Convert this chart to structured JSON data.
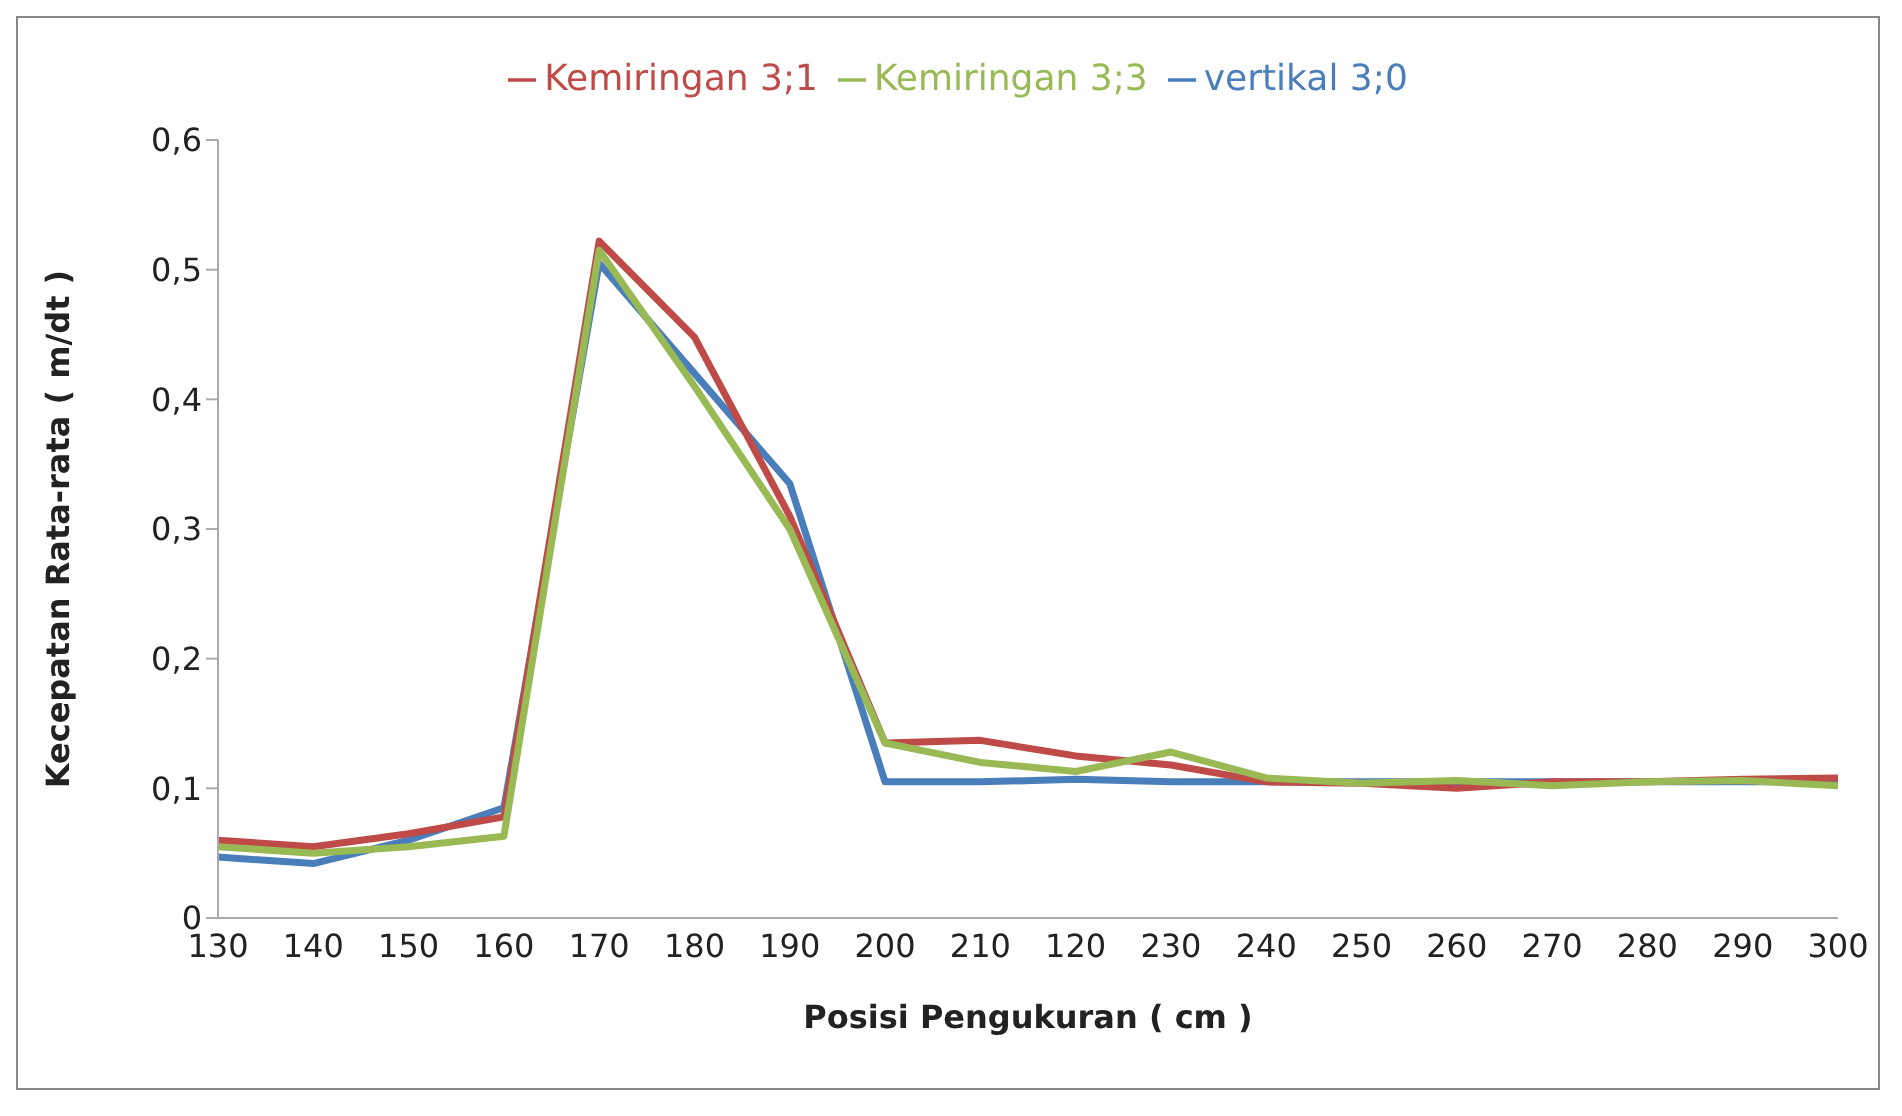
{
  "chart_data": {
    "type": "line",
    "xlabel": "Posisi Pengukuran ( cm )",
    "ylabel": "Kecepatan Rata-rata ( m/dt )",
    "categories": [
      "130",
      "140",
      "150",
      "160",
      "170",
      "180",
      "190",
      "200",
      "210",
      "120",
      "230",
      "240",
      "250",
      "260",
      "270",
      "280",
      "290",
      "300"
    ],
    "series": [
      {
        "name": "vertikal 3;0",
        "color": "#4a7ebb",
        "values": [
          0.047,
          0.042,
          0.06,
          0.085,
          0.505,
          0.42,
          0.335,
          0.105,
          0.105,
          0.107,
          0.105,
          0.105,
          0.105,
          0.105,
          0.105,
          0.105,
          0.105,
          0.105
        ]
      },
      {
        "name": "Kemiringan 3;1",
        "color": "#be4b48",
        "values": [
          0.06,
          0.055,
          0.065,
          0.078,
          0.522,
          0.448,
          0.31,
          0.135,
          0.137,
          0.125,
          0.118,
          0.105,
          0.104,
          0.1,
          0.105,
          0.105,
          0.107,
          0.108
        ]
      },
      {
        "name": "Kemiringan 3;3",
        "color": "#98b954",
        "values": [
          0.055,
          0.05,
          0.055,
          0.063,
          0.515,
          0.41,
          0.3,
          0.135,
          0.12,
          0.113,
          0.128,
          0.108,
          0.104,
          0.106,
          0.102,
          0.105,
          0.106,
          0.102
        ]
      }
    ],
    "ylim": [
      0,
      0.6
    ],
    "yticks": [
      0,
      {
        "value": 0.1,
        "label": "0,1"
      },
      {
        "value": 0.2,
        "label": "0,2"
      },
      {
        "value": 0.3,
        "label": "0,3"
      },
      {
        "value": 0.4,
        "label": "0,4"
      },
      {
        "value": 0.5,
        "label": "0,5"
      },
      {
        "value": 0.6,
        "label": "0,6"
      }
    ],
    "legend": "top",
    "marker": "none",
    "line_style": "solid"
  }
}
